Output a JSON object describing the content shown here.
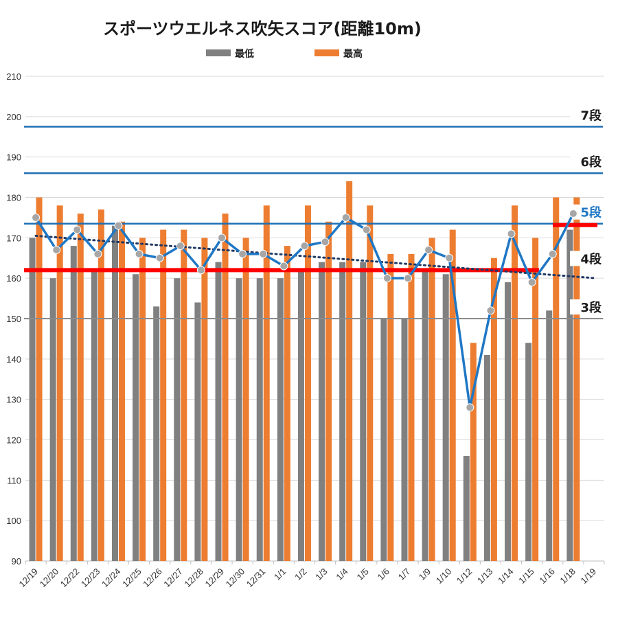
{
  "chart_data": {
    "type": "bar",
    "title": "スポーツウエルネス吹矢スコア(距離10m)",
    "xlabel": "",
    "ylabel": "",
    "ylim": [
      90,
      210
    ],
    "yticks": [
      90,
      100,
      110,
      120,
      130,
      140,
      150,
      160,
      170,
      180,
      190,
      200,
      210
    ],
    "grid": true,
    "legend": "top-center",
    "categories": [
      "12/19",
      "12/20",
      "12/22",
      "12/23",
      "12/24",
      "12/25",
      "12/26",
      "12/27",
      "12/28",
      "12/29",
      "12/30",
      "12/31",
      "1/1",
      "1/2",
      "1/3",
      "1/4",
      "1/5",
      "1/6",
      "1/7",
      "1/9",
      "1/10",
      "1/12",
      "1/13",
      "1/14",
      "1/15",
      "1/16",
      "1/18",
      "1/19"
    ],
    "series": [
      {
        "name": "最低",
        "color": "#808080",
        "values": [
          170,
          160,
          168,
          162,
          173,
          161,
          153,
          160,
          154,
          164,
          160,
          160,
          160,
          162,
          164,
          164,
          164,
          150,
          150,
          162,
          161,
          116,
          141,
          159,
          144,
          152,
          172,
          null
        ]
      },
      {
        "name": "最高",
        "color": "#ED7D31",
        "values": [
          180,
          178,
          176,
          177,
          174,
          170,
          172,
          172,
          170,
          176,
          170,
          178,
          168,
          178,
          174,
          184,
          178,
          166,
          166,
          170,
          172,
          144,
          165,
          178,
          170,
          180,
          180,
          null
        ]
      }
    ],
    "line_series": {
      "color": "#1F77C4",
      "marker_color": "#A6A6A6",
      "values": [
        175,
        167,
        172,
        166,
        173,
        166,
        165,
        168,
        162,
        170,
        166,
        166,
        163,
        168,
        169,
        175,
        172,
        160,
        160,
        167,
        165,
        128,
        152,
        171,
        159,
        166,
        176,
        null
      ]
    },
    "trendline": {
      "start": 170.5,
      "end": 160,
      "color": "#1F3864",
      "style": "dotted"
    },
    "rank_lines": [
      {
        "label": "7段",
        "value": 197.5,
        "color": "#1F6FB4",
        "label_color": "#1a1a1a"
      },
      {
        "label": "6段",
        "value": 186,
        "color": "#1F6FB4",
        "label_color": "#1a1a1a"
      },
      {
        "label": "5段",
        "value": 173.5,
        "color": "#1F6FB4",
        "label_color": "#1F77C4",
        "marker": "red"
      },
      {
        "label": "4段",
        "value": 162,
        "color": "#FF0000",
        "label_color": "#1a1a1a",
        "thick": true
      },
      {
        "label": "3段",
        "value": 150,
        "color": "#8C8C8C",
        "label_color": "#1a1a1a"
      }
    ]
  }
}
